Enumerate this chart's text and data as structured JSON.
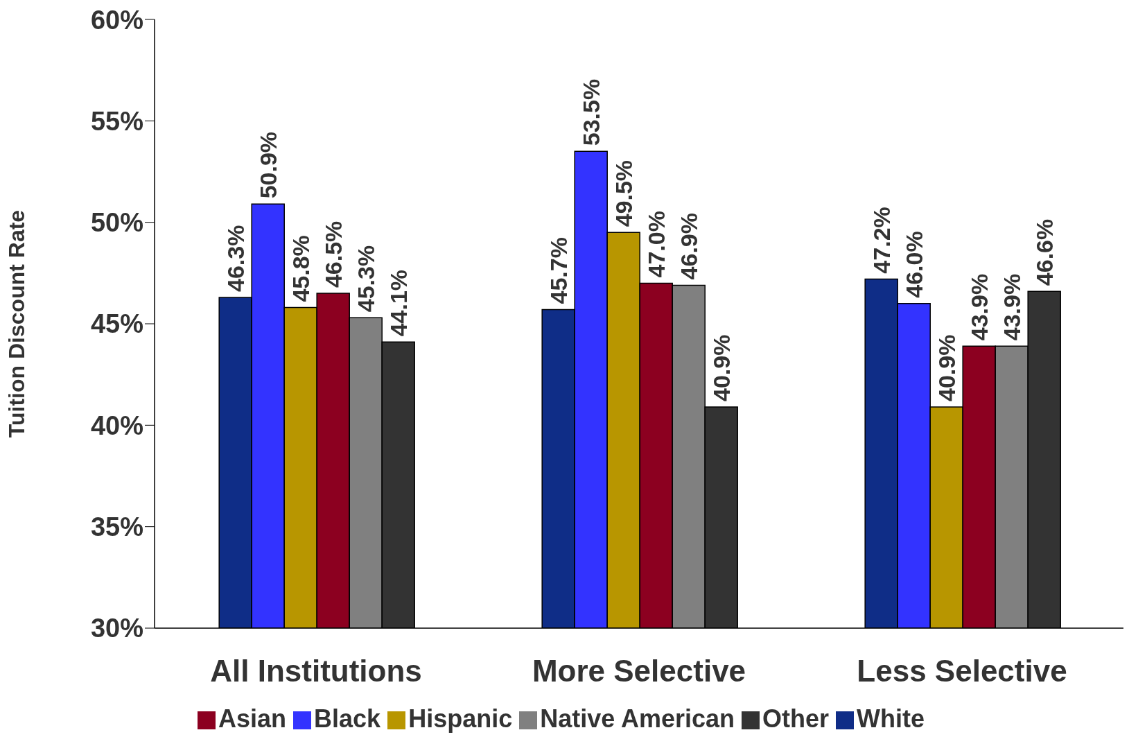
{
  "chart_data": {
    "type": "bar",
    "ylabel": "Tuition Discount Rate",
    "categories": [
      "All Institutions",
      "More Selective",
      "Less Selective"
    ],
    "series": [
      {
        "name": "White",
        "color": "#0f2d87",
        "values": [
          46.3,
          45.7,
          47.2
        ],
        "value_labels": [
          "46.3%",
          "45.7%",
          "47.2%"
        ]
      },
      {
        "name": "Black",
        "color": "#3333ff",
        "values": [
          50.9,
          53.5,
          46.0
        ],
        "value_labels": [
          "50.9%",
          "53.5%",
          "46.0%"
        ]
      },
      {
        "name": "Hispanic",
        "color": "#b89600",
        "values": [
          45.8,
          49.5,
          40.9
        ],
        "value_labels": [
          "45.8%",
          "49.5%",
          "40.9%"
        ]
      },
      {
        "name": "Asian",
        "color": "#8c0020",
        "values": [
          46.5,
          47.0,
          43.9
        ],
        "value_labels": [
          "46.5%",
          "47.0%",
          "43.9%"
        ]
      },
      {
        "name": "Native American",
        "color": "#808080",
        "values": [
          45.3,
          46.9,
          43.9
        ],
        "value_labels": [
          "45.3%",
          "46.9%",
          "43.9%"
        ]
      },
      {
        "name": "Other",
        "color": "#333333",
        "values": [
          44.1,
          40.9,
          46.6
        ],
        "value_labels": [
          "44.1%",
          "40.9%",
          "46.6%"
        ]
      }
    ],
    "ylim": [
      30,
      60
    ],
    "yticks": [
      {
        "value": 30,
        "label": "30%"
      },
      {
        "value": 35,
        "label": "35%"
      },
      {
        "value": 40,
        "label": "40%"
      },
      {
        "value": 45,
        "label": "45%"
      },
      {
        "value": 50,
        "label": "50%"
      },
      {
        "value": 55,
        "label": "55%"
      },
      {
        "value": 60,
        "label": "60%"
      }
    ],
    "grid": false,
    "legend": "bottom"
  }
}
